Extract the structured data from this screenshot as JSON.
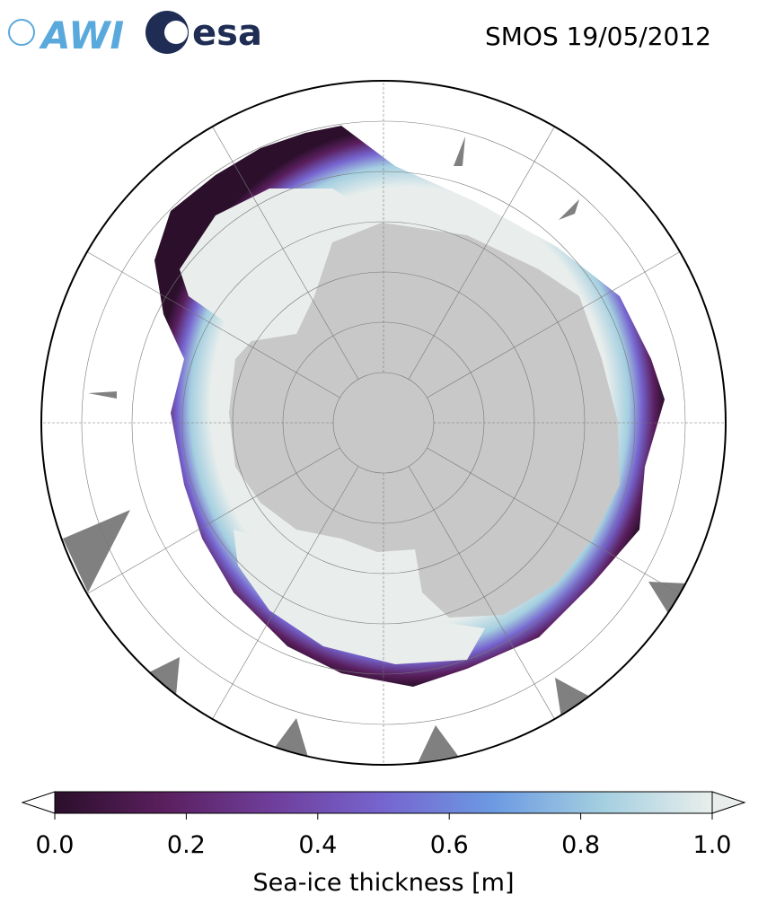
{
  "header": {
    "logos": [
      "AWI",
      "esa"
    ],
    "title": "SMOS 19/05/2012"
  },
  "colorbar": {
    "label": "Sea-ice thickness [m]",
    "lim": [
      0,
      1
    ],
    "ticks": [
      {
        "value": 0,
        "label": "0.0"
      },
      0.2,
      0.4,
      0.6,
      0.8,
      {
        "value": 1,
        "label": "1.0"
      }
    ],
    "colors": [
      "#2b0f2b",
      "#5a1f5e",
      "#6f3f9c",
      "#7665cf",
      "#6c9ae2",
      "#a4cfe0",
      "#e9eeec"
    ]
  }
}
